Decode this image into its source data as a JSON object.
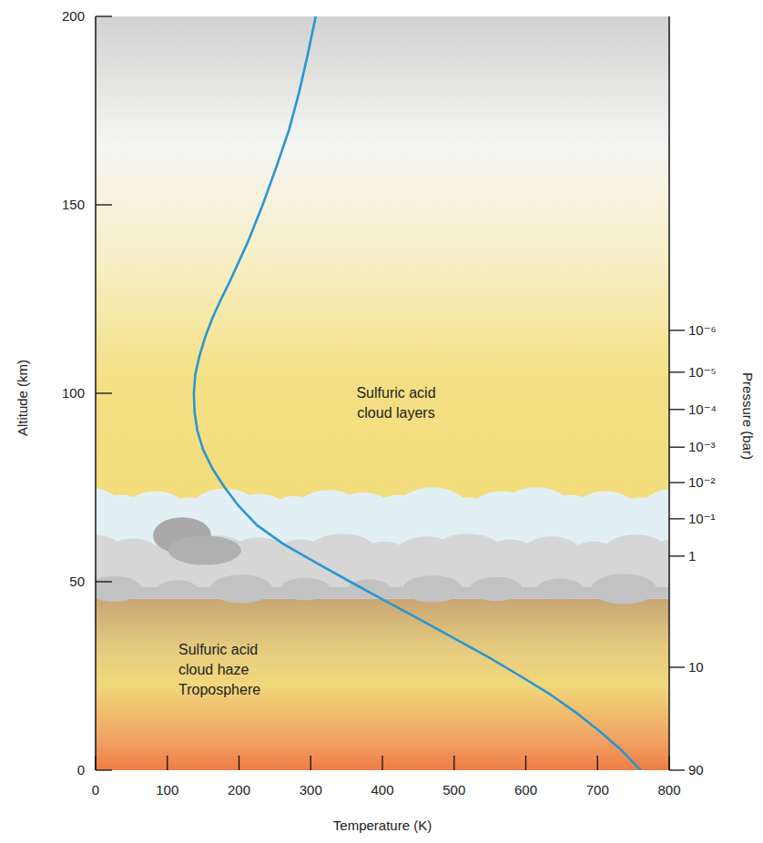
{
  "chart_data": {
    "type": "line",
    "x_label": "Temperature (K)",
    "y_label": "Altitude (km)",
    "y2_label": "Pressure (bar)",
    "x": [
      760,
      735,
      705,
      672,
      635,
      592,
      548,
      500,
      452,
      403,
      355,
      308,
      262,
      225,
      200,
      180,
      163,
      150,
      142,
      138,
      137,
      139,
      145,
      153,
      163,
      175,
      188,
      212,
      233,
      252,
      270,
      284,
      296,
      307
    ],
    "values": [
      0,
      5,
      10,
      15,
      20,
      25,
      30,
      35,
      40,
      45,
      50,
      55,
      60,
      65,
      70,
      75,
      80,
      85,
      90,
      95,
      100,
      105,
      110,
      115,
      120,
      125,
      130,
      140,
      150,
      160,
      170,
      180,
      190,
      200
    ],
    "color": "#2a96d0",
    "xlim": [
      0,
      800
    ],
    "xticks": [
      0,
      100,
      200,
      300,
      400,
      500,
      600,
      700,
      800
    ],
    "ylim": [
      0,
      200
    ],
    "yticks": [
      0,
      50,
      100,
      150,
      200
    ],
    "grid": false,
    "pressure_ticks": [
      {
        "altitude": 116.7,
        "label": "10⁻⁶"
      },
      {
        "altitude": 105.6,
        "label": "10⁻⁵"
      },
      {
        "altitude": 95.7,
        "label": "10⁻⁴"
      },
      {
        "altitude": 85.7,
        "label": "10⁻³"
      },
      {
        "altitude": 76.3,
        "label": "10⁻²"
      },
      {
        "altitude": 66.7,
        "label": "10⁻¹"
      },
      {
        "altitude": 56.8,
        "label": "1"
      },
      {
        "altitude": 27.3,
        "label": "10"
      },
      {
        "altitude": 0,
        "label": "90"
      }
    ],
    "cloud_layer": [
      45.5,
      76
    ],
    "annotations": [
      [
        "Sulfuric acid",
        "cloud layers"
      ],
      [
        "Sulfuric acid",
        "cloud haze",
        "Troposphere"
      ]
    ]
  }
}
